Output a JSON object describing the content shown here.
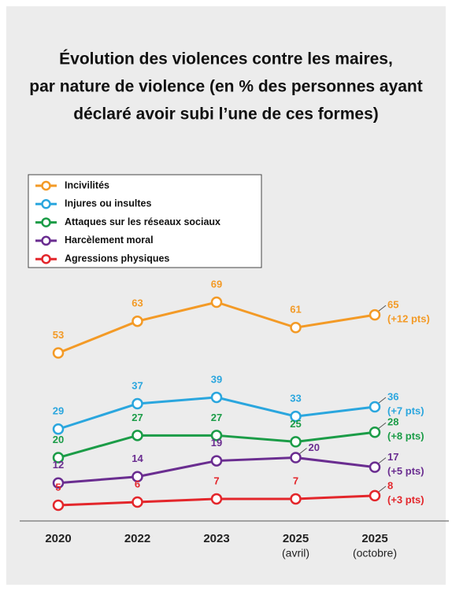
{
  "chart_data": {
    "type": "line",
    "title": [
      "Évolution des violences contre les maires,",
      "par nature de violence (en % des personnes ayant",
      "déclaré avoir subi l’une de ces formes)"
    ],
    "categories": [
      "2020",
      "2022",
      "2023",
      "2025",
      "2025"
    ],
    "category_notes": [
      null,
      null,
      null,
      "(avril)",
      "(octobre)"
    ],
    "series": [
      {
        "name": "Incivilités",
        "color": "#f39a26",
        "values": [
          53,
          63,
          69,
          61,
          65
        ],
        "change": "(+12 pts)"
      },
      {
        "name": "Injures ou insultes",
        "color": "#2aa6de",
        "values": [
          29,
          37,
          39,
          33,
          36
        ],
        "change": "(+7 pts)"
      },
      {
        "name": "Attaques sur les réseaux sociaux",
        "color": "#1b9c47",
        "values": [
          20,
          27,
          27,
          25,
          28
        ],
        "change": "(+8 pts)"
      },
      {
        "name": "Harcèlement moral",
        "color": "#6a2d90",
        "values": [
          12,
          14,
          19,
          20,
          17
        ],
        "change": "(+5 pts)"
      },
      {
        "name": "Agressions physiques",
        "color": "#e3262b",
        "values": [
          5,
          6,
          7,
          7,
          8
        ],
        "change": "(+3 pts)"
      }
    ]
  }
}
